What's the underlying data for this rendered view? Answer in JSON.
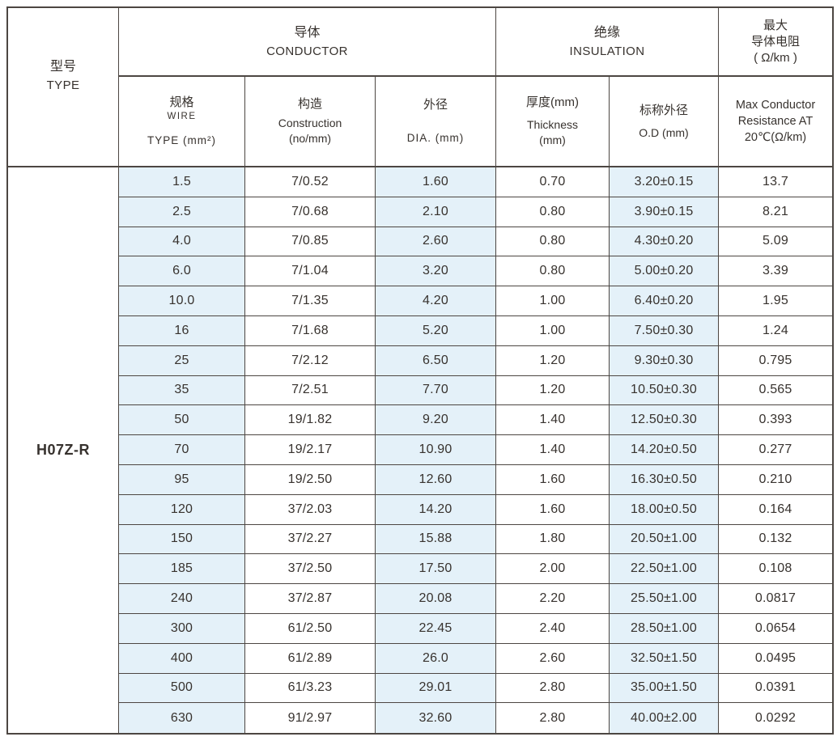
{
  "colors": {
    "shaded_cell_bg": "#e4f1f9",
    "border": "#4c4642",
    "text": "#37322e"
  },
  "table": {
    "type_header": {
      "zh": "型号",
      "en": "TYPE"
    },
    "groups": {
      "conductor": {
        "zh": "导体",
        "en": "CONDUCTOR"
      },
      "insulation": {
        "zh": "绝缘",
        "en": "INSULATION"
      },
      "max_resistance": {
        "line1": "最大",
        "line2": "导体电阻",
        "line3": "( Ω/km )"
      }
    },
    "subheaders": {
      "wire": {
        "zh": "规格",
        "en1": "WIRE",
        "en2": "TYPE (mm²)"
      },
      "construction": {
        "zh": "构造",
        "en1": "Construction",
        "en2": "(no/mm)"
      },
      "dia": {
        "zh": "外径",
        "en1": "DIA. (mm)"
      },
      "thickness": {
        "zh": "厚度(mm)",
        "en1": "Thickness",
        "en2": "(mm)"
      },
      "od": {
        "zh": "标称外径",
        "en1": "O.D (mm)"
      },
      "max": {
        "en1": "Max Conductor",
        "en2": "Resistance AT",
        "en3": "20℃(Ω/km)"
      }
    },
    "type_value": "H07Z-R",
    "column_keys": [
      "wire_type_mm2",
      "construction_no_mm",
      "dia_mm",
      "thickness_mm",
      "nominal_od_mm",
      "max_conductor_resistance_ohm_km"
    ],
    "rows": [
      [
        "1.5",
        "7/0.52",
        "1.60",
        "0.70",
        "3.20±0.15",
        "13.7"
      ],
      [
        "2.5",
        "7/0.68",
        "2.10",
        "0.80",
        "3.90±0.15",
        "8.21"
      ],
      [
        "4.0",
        "7/0.85",
        "2.60",
        "0.80",
        "4.30±0.20",
        "5.09"
      ],
      [
        "6.0",
        "7/1.04",
        "3.20",
        "0.80",
        "5.00±0.20",
        "3.39"
      ],
      [
        "10.0",
        "7/1.35",
        "4.20",
        "1.00",
        "6.40±0.20",
        "1.95"
      ],
      [
        "16",
        "7/1.68",
        "5.20",
        "1.00",
        "7.50±0.30",
        "1.24"
      ],
      [
        "25",
        "7/2.12",
        "6.50",
        "1.20",
        "9.30±0.30",
        "0.795"
      ],
      [
        "35",
        "7/2.51",
        "7.70",
        "1.20",
        "10.50±0.30",
        "0.565"
      ],
      [
        "50",
        "19/1.82",
        "9.20",
        "1.40",
        "12.50±0.30",
        "0.393"
      ],
      [
        "70",
        "19/2.17",
        "10.90",
        "1.40",
        "14.20±0.50",
        "0.277"
      ],
      [
        "95",
        "19/2.50",
        "12.60",
        "1.60",
        "16.30±0.50",
        "0.210"
      ],
      [
        "120",
        "37/2.03",
        "14.20",
        "1.60",
        "18.00±0.50",
        "0.164"
      ],
      [
        "150",
        "37/2.27",
        "15.88",
        "1.80",
        "20.50±1.00",
        "0.132"
      ],
      [
        "185",
        "37/2.50",
        "17.50",
        "2.00",
        "22.50±1.00",
        "0.108"
      ],
      [
        "240",
        "37/2.87",
        "20.08",
        "2.20",
        "25.50±1.00",
        "0.0817"
      ],
      [
        "300",
        "61/2.50",
        "22.45",
        "2.40",
        "28.50±1.00",
        "0.0654"
      ],
      [
        "400",
        "61/2.89",
        "26.0",
        "2.60",
        "32.50±1.50",
        "0.0495"
      ],
      [
        "500",
        "61/3.23",
        "29.01",
        "2.80",
        "35.00±1.50",
        "0.0391"
      ],
      [
        "630",
        "91/2.97",
        "32.60",
        "2.80",
        "40.00±2.00",
        "0.0292"
      ]
    ]
  }
}
